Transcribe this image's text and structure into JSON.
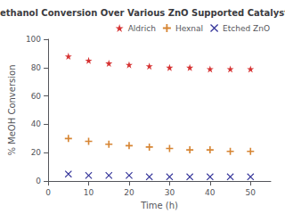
{
  "chart_data": {
    "type": "scatter",
    "title": "Methanol Conversion Over Various ZnO Supported Catalysts",
    "x_label": "Time (h)",
    "y_label": "% MeOH Conversion",
    "x": [
      5,
      10,
      15,
      20,
      25,
      30,
      35,
      40,
      45,
      50
    ],
    "series": [
      {
        "name": "Aldrich",
        "color": "#cc0000",
        "marker": "star",
        "values": [
          88,
          85,
          83,
          82,
          81,
          80,
          80,
          79,
          79,
          79
        ]
      },
      {
        "name": "Hexnal",
        "color": "#cc6600",
        "marker": "plus",
        "values": [
          30,
          28,
          26,
          25,
          24,
          23,
          22,
          22,
          21,
          21
        ]
      },
      {
        "name": "Etched ZnO",
        "color": "#000080",
        "marker": "x",
        "values": [
          5,
          4,
          4,
          4,
          3,
          3,
          3,
          3,
          3,
          3
        ]
      }
    ],
    "xlim": [
      0,
      55
    ],
    "xticks": [
      0,
      10,
      20,
      30,
      40,
      50
    ],
    "ylim": [
      0,
      100
    ],
    "yticks": [
      0,
      20,
      40,
      60,
      80,
      100
    ],
    "grid": false,
    "legend": "upper right"
  }
}
